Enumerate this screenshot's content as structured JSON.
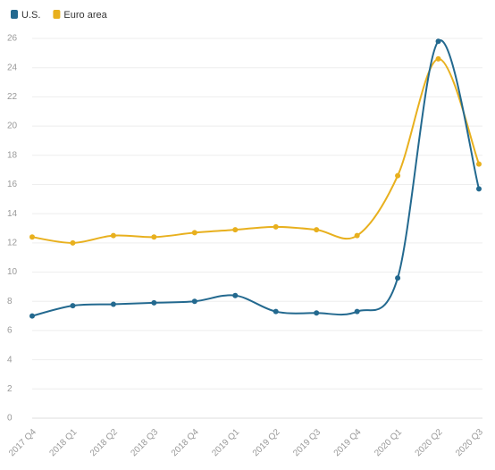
{
  "chart_data": {
    "type": "line",
    "categories": [
      "2017 Q4",
      "2018 Q1",
      "2018 Q2",
      "2018 Q3",
      "2018 Q4",
      "2019 Q1",
      "2019 Q2",
      "2019 Q3",
      "2019 Q4",
      "2020 Q1",
      "2020 Q2",
      "2020 Q3"
    ],
    "series": [
      {
        "name": "U.S.",
        "color": "#23698f",
        "values": [
          7.0,
          7.7,
          7.8,
          7.9,
          8.0,
          8.4,
          7.3,
          7.2,
          7.3,
          9.6,
          25.8,
          15.7
        ]
      },
      {
        "name": "Euro area",
        "color": "#e8b01e",
        "values": [
          12.4,
          12.0,
          12.5,
          12.4,
          12.7,
          12.9,
          13.1,
          12.9,
          12.5,
          16.6,
          24.6,
          17.4
        ]
      }
    ],
    "ylim": [
      0,
      26
    ],
    "yticks": [
      0,
      2,
      4,
      6,
      8,
      10,
      12,
      14,
      16,
      18,
      20,
      22,
      24,
      26
    ],
    "grid": true
  }
}
